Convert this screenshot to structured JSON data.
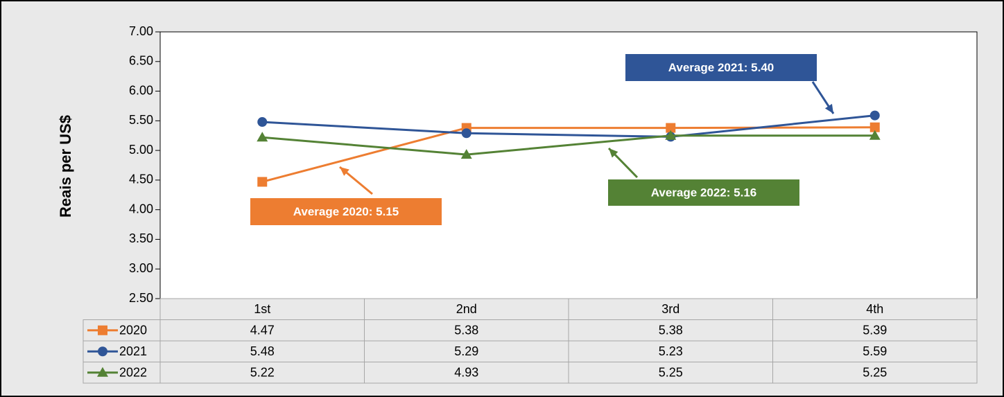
{
  "chart_data": {
    "type": "line",
    "ylabel": "Reais per US$",
    "categories": [
      "1st",
      "2nd",
      "3rd",
      "4th"
    ],
    "series": [
      {
        "name": "2020",
        "color": "#ed7d31",
        "marker": "square",
        "values": [
          4.47,
          5.38,
          5.38,
          5.39
        ]
      },
      {
        "name": "2021",
        "color": "#2f5597",
        "marker": "circle",
        "values": [
          5.48,
          5.29,
          5.23,
          5.59
        ]
      },
      {
        "name": "2022",
        "color": "#548235",
        "marker": "triangle",
        "values": [
          5.22,
          4.93,
          5.25,
          5.25
        ]
      }
    ],
    "ylim": [
      2.5,
      7.0
    ],
    "yticks": [
      {
        "value": 2.5,
        "label": "2.50"
      },
      {
        "value": 3.0,
        "label": "3.00"
      },
      {
        "value": 3.5,
        "label": "3.50"
      },
      {
        "value": 4.0,
        "label": "4.00"
      },
      {
        "value": 4.5,
        "label": "4.50"
      },
      {
        "value": 5.0,
        "label": "5.00"
      },
      {
        "value": 5.5,
        "label": "5.50"
      },
      {
        "value": 6.0,
        "label": "6.00"
      },
      {
        "value": 6.5,
        "label": "6.50"
      },
      {
        "value": 7.0,
        "label": "7.00"
      }
    ],
    "annotations": [
      {
        "text": "Average 2020: 5.15",
        "color": "#ed7d31"
      },
      {
        "text": "Average 2021: 5.40",
        "color": "#2f5597"
      },
      {
        "text": "Average 2022: 5.16",
        "color": "#548235"
      }
    ],
    "data_table": true
  }
}
